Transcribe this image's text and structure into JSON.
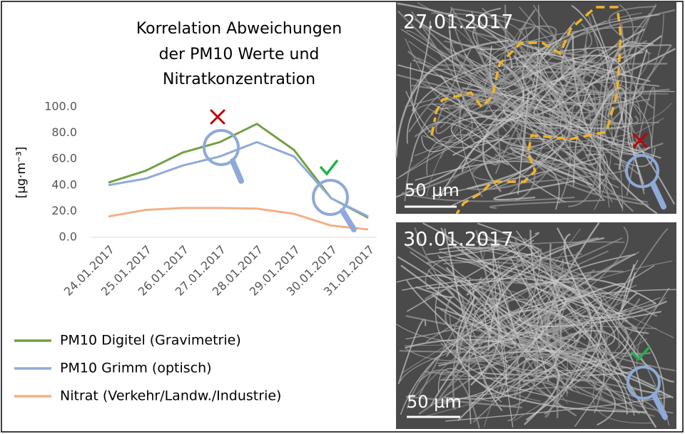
{
  "chart_data": {
    "type": "line",
    "title": [
      "Korrelation Abweichungen",
      "der PM10 Werte und",
      "Nitratkonzentration"
    ],
    "y_label": "[µg·m⁻³]",
    "categories": [
      "24.01.2017",
      "25.01.2017",
      "26.01.2017",
      "27.01.2017",
      "28.01.2017",
      "29.01.2017",
      "30.01.2017",
      "31.01.2017"
    ],
    "series": [
      {
        "name": "PM10 Digitel (Gravimetrie)",
        "color": "#72a044",
        "values": [
          42,
          51,
          65,
          73,
          87,
          67,
          30,
          15
        ]
      },
      {
        "name": "PM10 Grimm (optisch)",
        "color": "#8eaad8",
        "values": [
          40,
          45,
          55,
          62,
          73,
          62,
          30,
          16
        ]
      },
      {
        "name": "Nitrat (Verkehr/Landw./Industrie)",
        "color": "#f2b086",
        "values": [
          16,
          21,
          22.5,
          22.5,
          22,
          18,
          9,
          6
        ]
      }
    ],
    "ylim": [
      0,
      100
    ],
    "yticks": [
      {
        "value": 0,
        "label": "0.0"
      },
      {
        "value": 20,
        "label": "20.0"
      },
      {
        "value": 40,
        "label": "40.0"
      },
      {
        "value": 60,
        "label": "60.0"
      },
      {
        "value": 80,
        "label": "80.0"
      },
      {
        "value": 100,
        "label": "100.0"
      }
    ],
    "grid": false,
    "legend": "bottom"
  },
  "panels": [
    {
      "date": "27.01.2017",
      "scale": "50 µm"
    },
    {
      "date": "30.01.2017",
      "scale": "50 µm"
    }
  ]
}
